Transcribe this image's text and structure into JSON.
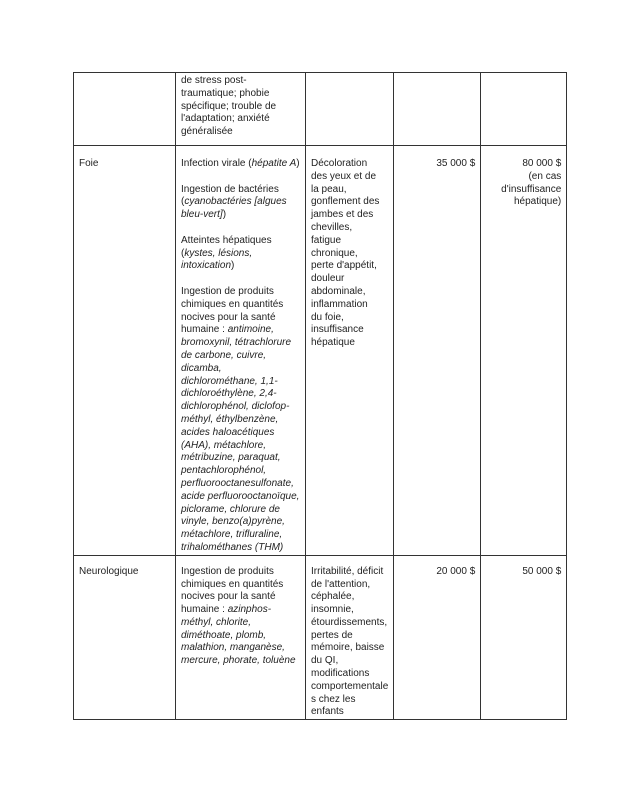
{
  "table": {
    "rows": [
      {
        "cells": [
          [],
          [
            [
              "de stress post-",
              "traumatique; phobie",
              "spécifique; trouble de",
              "l'adaptation; anxiété",
              "généralisée"
            ]
          ],
          [],
          [],
          []
        ]
      },
      {
        "cells": [
          [
            [
              "Foie"
            ]
          ],
          [
            [
              "Infection virale (*hépatite A*)"
            ],
            [
              "Ingestion de bactéries",
              "(*cyanobactéries [algues*",
              "*bleu-vert]*)"
            ],
            [
              "Atteintes hépatiques",
              "(*kystes, lésions,*",
              "*intoxication*)"
            ],
            [
              "Ingestion de produits",
              "chimiques en quantités",
              "nocives pour la santé",
              "humaine : *antimoine,*",
              "*bromoxynil, tétrachlorure*",
              "*de carbone, cuivre,*",
              "*dicamba,*",
              "*dichlorométhane, 1,1-*",
              "*dichloroéthylène, 2,4-*",
              "*dichlorophénol, diclofop-*",
              "*méthyl, éthylbenzène,*",
              "*acides haloacétiques*",
              "*(AHA), métachlore,*",
              "*métribuzine, paraquat,*",
              "*pentachlorophénol,*",
              "*perfluorooctanesulfonate,*",
              "*acide perfluorooctanoïque,*",
              "*piclorame, chlorure de*",
              "*vinyle, benzo(a)pyrène,*",
              "*métachlore, trifluraline,*",
              "*trihalométhanes (THM)*"
            ]
          ],
          [
            [
              "Décoloration",
              "des yeux et de",
              "la peau,",
              "gonflement des",
              "jambes et des",
              "chevilles,",
              "fatigue",
              "chronique,",
              "perte d'appétit,",
              "douleur",
              "abdominale,",
              "inflammation",
              "du foie,",
              "insuffisance",
              "hépatique"
            ]
          ],
          [
            [
              "35 000 $"
            ]
          ],
          [
            [
              "80 000 $",
              "(en cas",
              "d'insuffisance",
              "hépatique)"
            ]
          ]
        ]
      },
      {
        "cells": [
          [
            [
              "Neurologique"
            ]
          ],
          [
            [
              "Ingestion de produits",
              "chimiques en quantités",
              "nocives pour la santé",
              "humaine : *azinphos-*",
              "*méthyl, chlorite,*",
              "*diméthoate, plomb,*",
              "*malathion, manganèse,*",
              "*mercure, phorate, toluène*"
            ]
          ],
          [
            [
              "Irritabilité, déficit",
              "de l'attention,",
              "céphalée,",
              "insomnie,",
              "étourdissements,",
              "pertes de",
              "mémoire, baisse",
              "du QI,",
              "modifications",
              "comportementale",
              "s chez les",
              "enfants"
            ]
          ],
          [
            [
              "20 000 $"
            ]
          ],
          [
            [
              "50 000 $"
            ]
          ]
        ]
      }
    ]
  }
}
